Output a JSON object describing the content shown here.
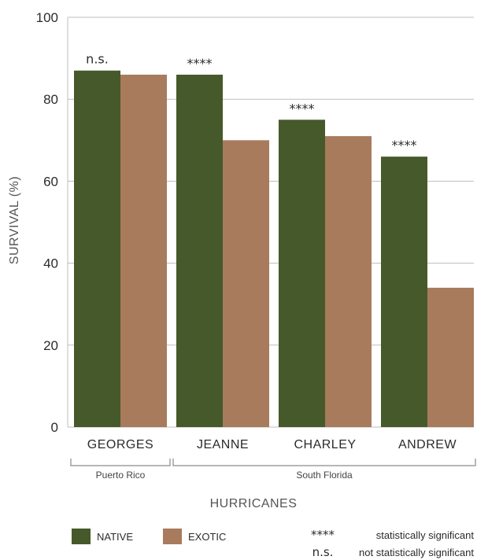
{
  "chart_data": {
    "type": "bar",
    "categories": [
      "GEORGES",
      "JEANNE",
      "CHARLEY",
      "ANDREW"
    ],
    "series": [
      {
        "name": "NATIVE",
        "color": "#46592b",
        "values": [
          87,
          86,
          75,
          66
        ]
      },
      {
        "name": "EXOTIC",
        "color": "#a87b5c",
        "values": [
          86,
          70,
          71,
          34
        ]
      }
    ],
    "significance": [
      "n.s.",
      "****",
      "****",
      "****"
    ],
    "xlabel": "HURRICANES",
    "ylabel": "SURVIVAL (%)",
    "ylim": [
      0,
      100
    ],
    "yticks": [
      0,
      20,
      40,
      60,
      80,
      100
    ],
    "grid": true,
    "groups": [
      {
        "label": "Puerto Rico",
        "from": 0,
        "to": 0
      },
      {
        "label": "South Florida",
        "from": 1,
        "to": 3
      }
    ],
    "legend": {
      "placement": "bottom",
      "significance_key": [
        {
          "symbol": "****",
          "text": "statistically significant"
        },
        {
          "symbol": "n.s.",
          "text": "not statistically significant"
        }
      ]
    }
  }
}
